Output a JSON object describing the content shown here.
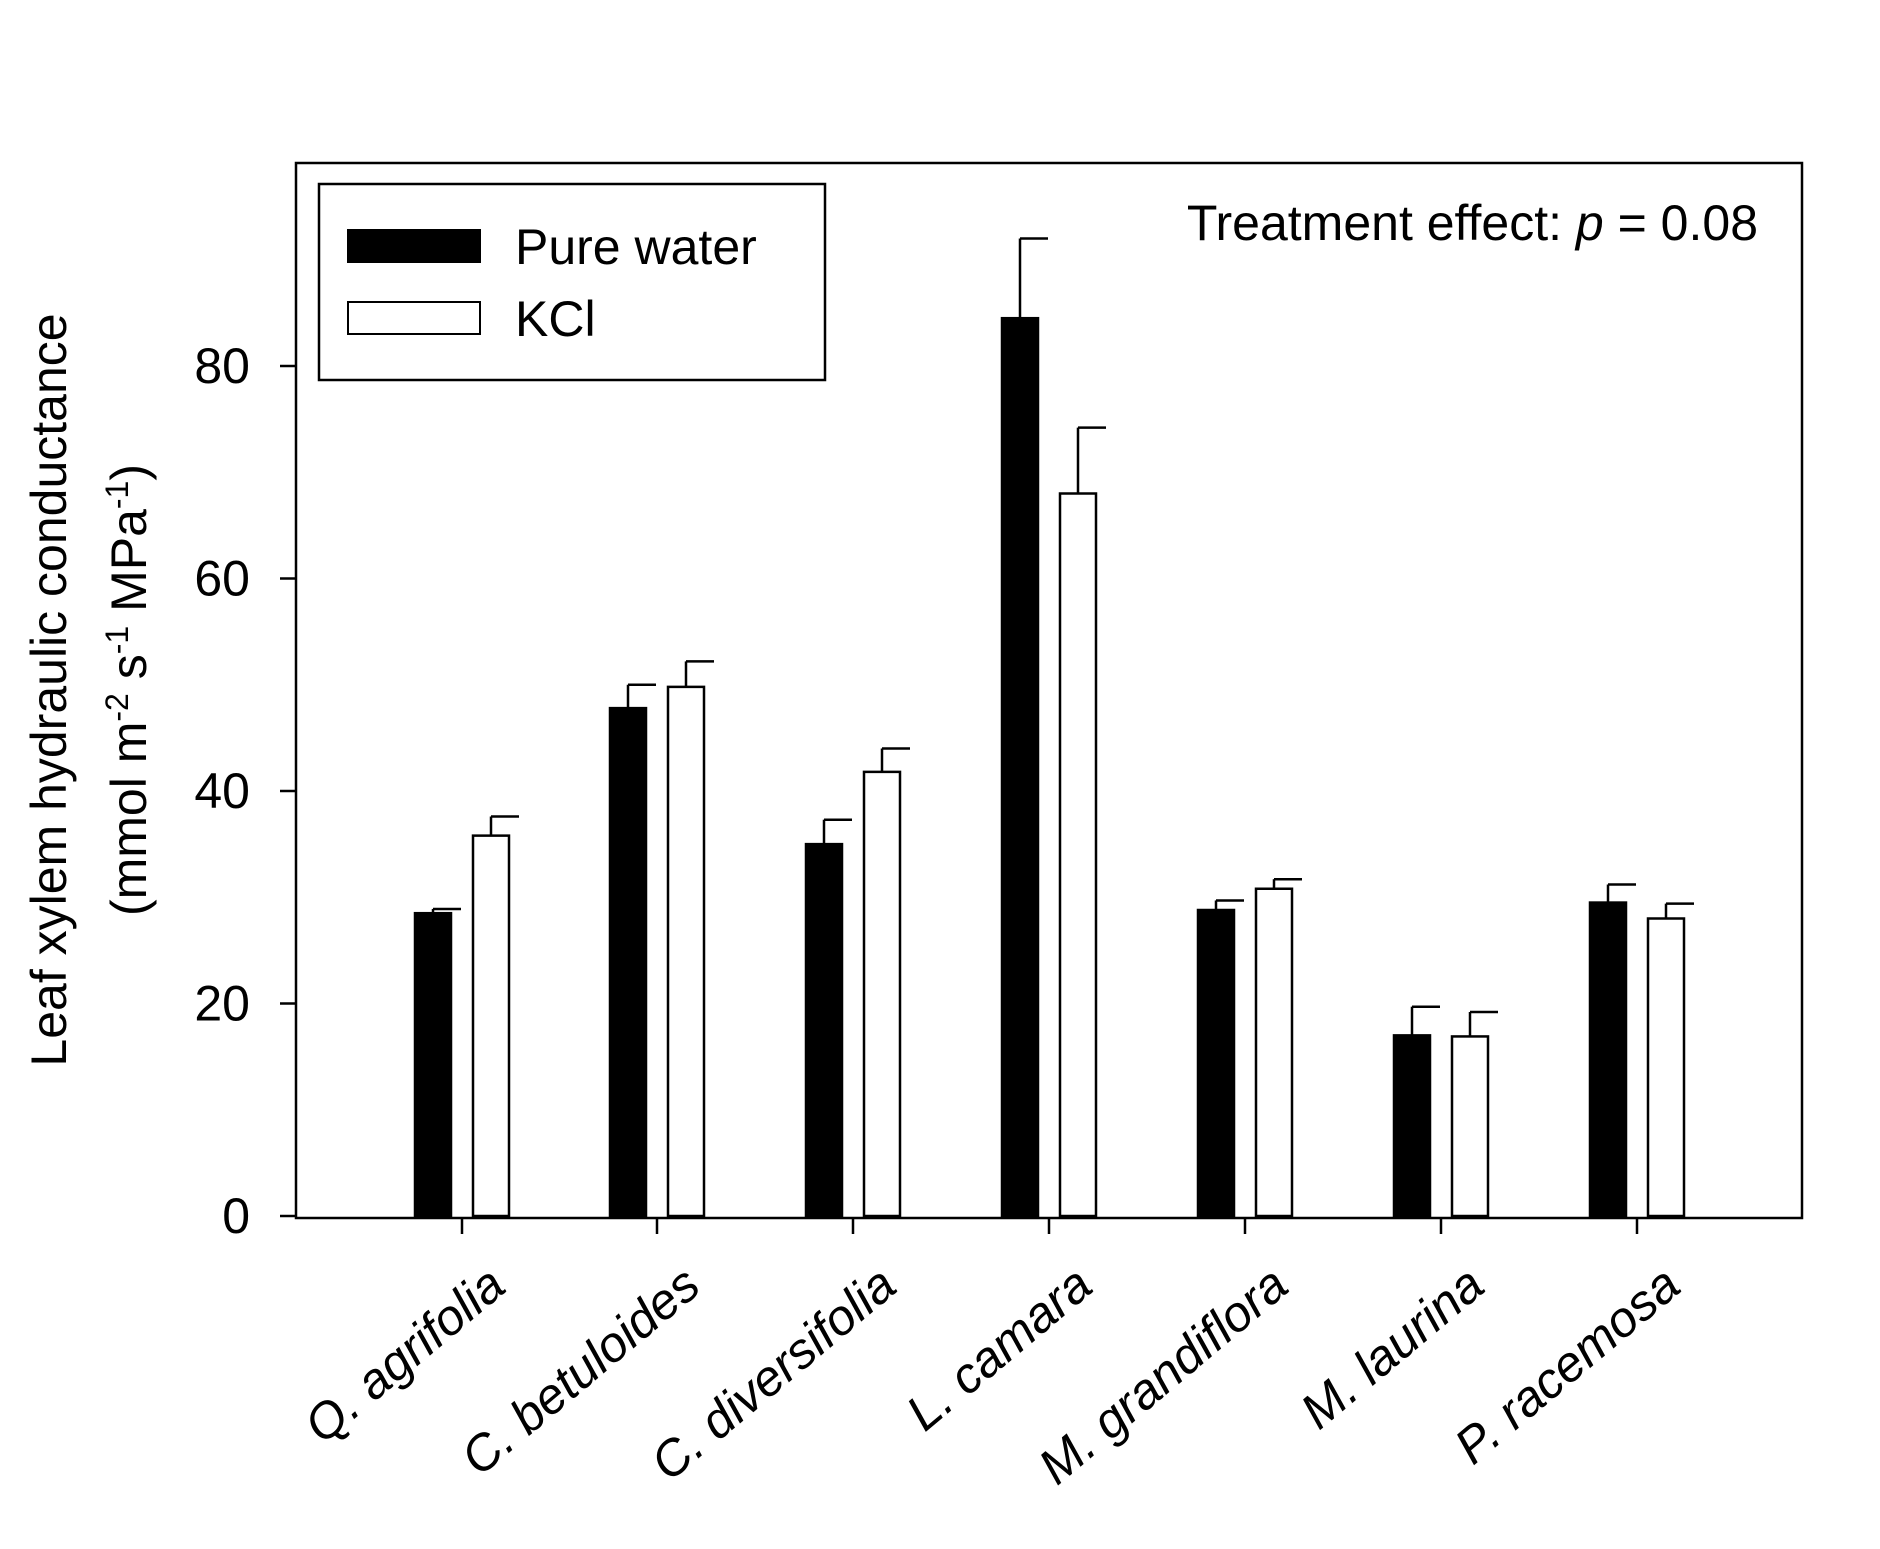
{
  "chart_data": {
    "type": "bar",
    "title": "",
    "xlabel": "",
    "ylabel_line1": "Leaf xylem hydraulic conductance",
    "ylabel_line2_parts": [
      {
        "text": "(mmol m",
        "sup": false
      },
      {
        "text": "-2",
        "sup": true
      },
      {
        "text": " s",
        "sup": false
      },
      {
        "text": "-1",
        "sup": true
      },
      {
        "text": " MPa",
        "sup": false
      },
      {
        "text": "-1",
        "sup": true
      },
      {
        "text": ")",
        "sup": false
      }
    ],
    "ylim": [
      0,
      99
    ],
    "yticks": [
      0,
      20,
      40,
      60,
      80
    ],
    "categories": [
      "Q. agrifolia",
      "C. betuloides",
      "C. diversifolia",
      "L. camara",
      "M. grandiflora",
      "M. laurina",
      "P. racemosa"
    ],
    "series": [
      {
        "name": "Pure water",
        "fill": "#000000",
        "values": [
          28.5,
          47.8,
          35.0,
          84.5,
          28.8,
          17.0,
          29.5
        ],
        "errors": [
          0.4,
          2.2,
          2.3,
          7.5,
          0.9,
          2.7,
          1.7
        ]
      },
      {
        "name": "KCl",
        "fill": "#ffffff",
        "values": [
          35.8,
          49.8,
          41.8,
          68.0,
          30.8,
          16.9,
          28.0
        ],
        "errors": [
          1.8,
          2.4,
          2.2,
          6.2,
          0.9,
          2.3,
          1.4
        ]
      }
    ],
    "legend_position": "top-left",
    "annotation": {
      "prefix": "Treatment effect: ",
      "italic": "p",
      "suffix": " = 0.08"
    },
    "grid": false
  }
}
